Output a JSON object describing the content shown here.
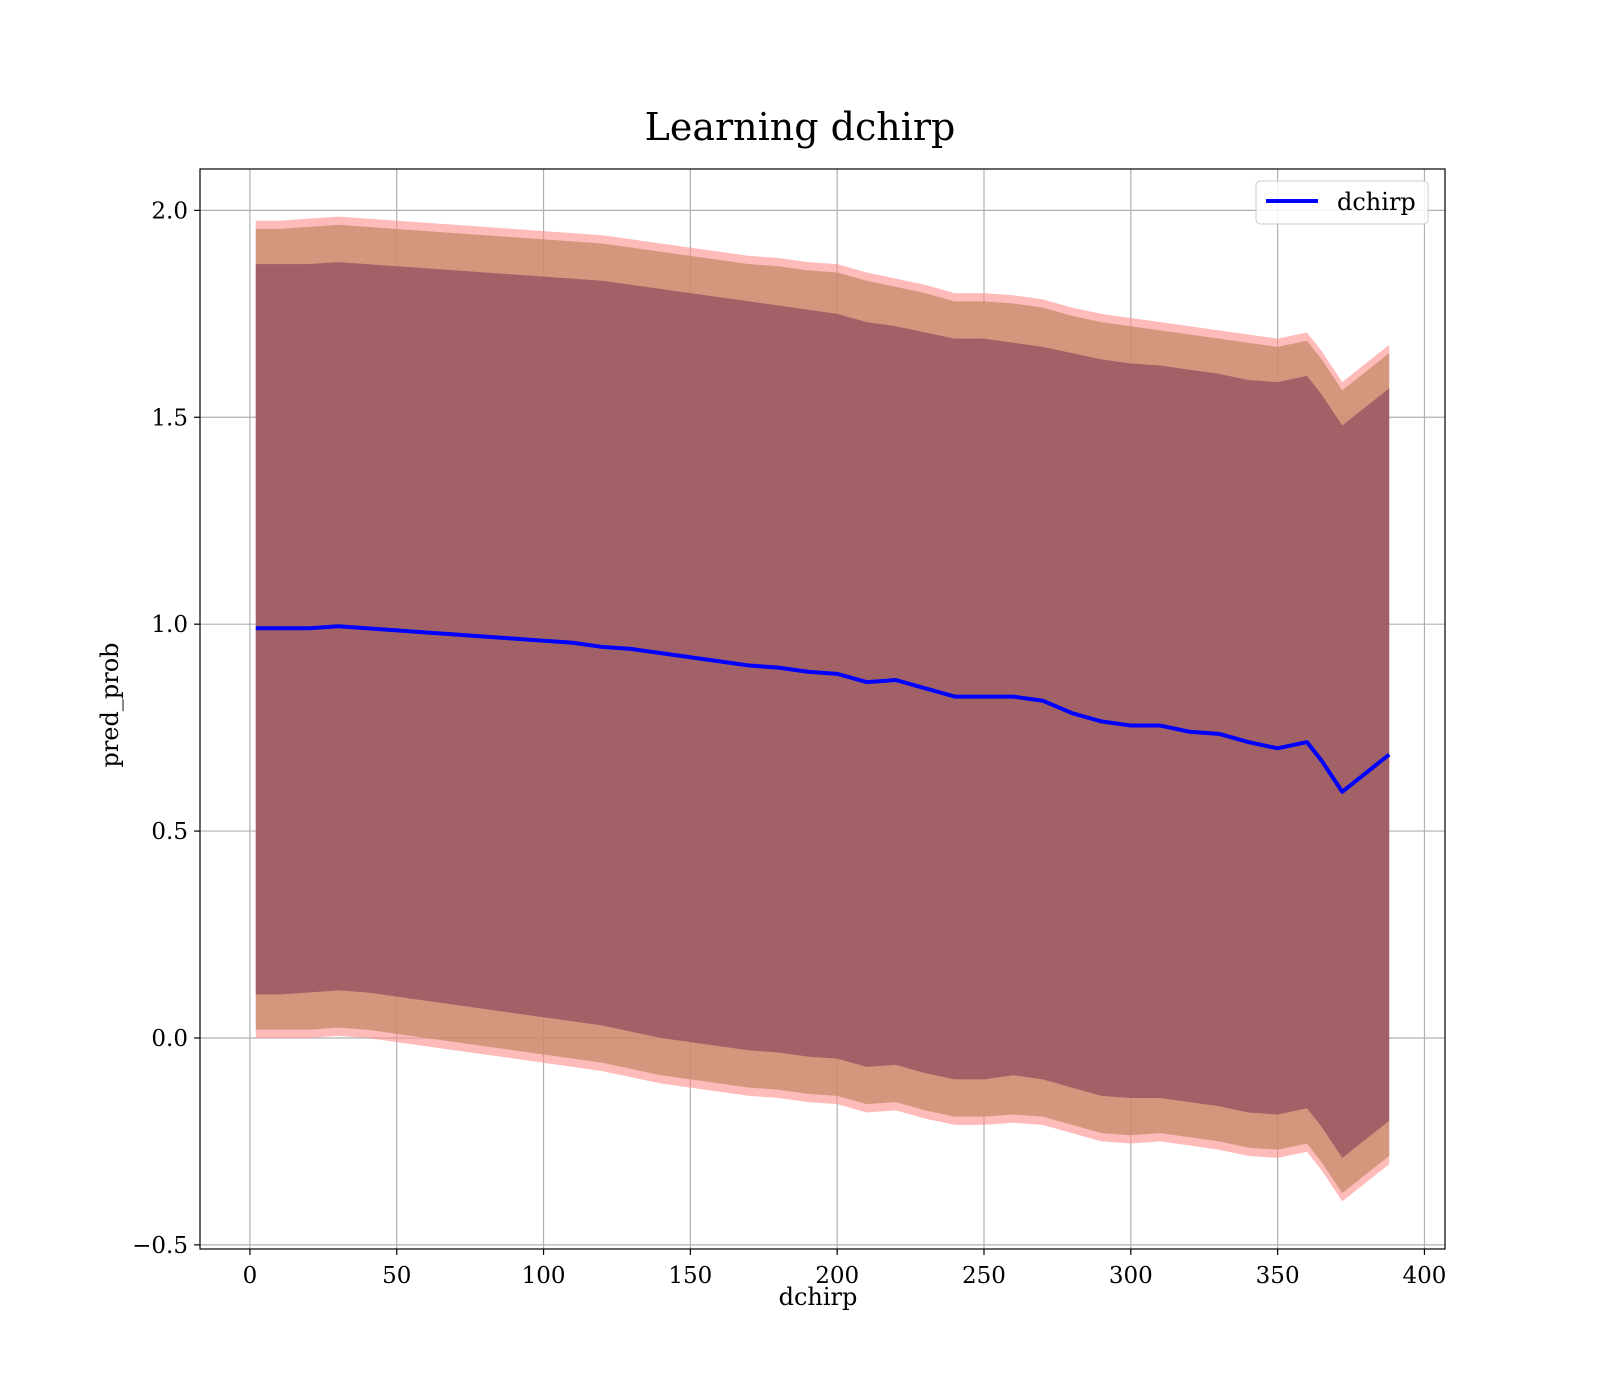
{
  "chart_data": {
    "type": "line",
    "title": "Learning dchirp",
    "xlabel": "dchirp",
    "ylabel": "pred_prob",
    "xlim": [
      -17,
      407
    ],
    "ylim": [
      -0.51,
      2.1
    ],
    "grid": true,
    "legend_placement": "top-right",
    "x_ticks": [
      0,
      50,
      100,
      150,
      200,
      250,
      300,
      350,
      400
    ],
    "x_tick_labels": [
      "0",
      "50",
      "100",
      "150",
      "200",
      "250",
      "300",
      "350",
      "400"
    ],
    "y_ticks": [
      -0.5,
      0.0,
      0.5,
      1.0,
      1.5,
      2.0
    ],
    "y_tick_labels": [
      "−0.5",
      "0.0",
      "0.5",
      "1.0",
      "1.5",
      "2.0"
    ],
    "series": [
      {
        "name": "dchirp",
        "color": "#0000ff",
        "x": [
          2,
          10,
          20,
          30,
          40,
          50,
          60,
          70,
          80,
          90,
          100,
          110,
          120,
          130,
          140,
          150,
          160,
          170,
          180,
          190,
          200,
          210,
          220,
          230,
          240,
          250,
          260,
          270,
          280,
          290,
          300,
          310,
          320,
          330,
          340,
          350,
          360,
          365,
          372,
          388
        ],
        "values": [
          0.99,
          0.99,
          0.99,
          0.995,
          0.99,
          0.985,
          0.98,
          0.975,
          0.97,
          0.965,
          0.96,
          0.955,
          0.945,
          0.94,
          0.93,
          0.92,
          0.91,
          0.9,
          0.895,
          0.885,
          0.88,
          0.86,
          0.865,
          0.845,
          0.825,
          0.825,
          0.825,
          0.815,
          0.785,
          0.765,
          0.755,
          0.755,
          0.74,
          0.735,
          0.715,
          0.7,
          0.715,
          0.67,
          0.595,
          0.685
        ],
        "bands": [
          {
            "sigma": 1,
            "color": "#8b4a5e",
            "opacity": 0.7
          },
          {
            "sigma": 2,
            "color": "#c88a6a",
            "opacity": 0.75
          },
          {
            "sigma": 3,
            "color": "#ff8c8c",
            "opacity": 0.6
          }
        ],
        "band_1_lower": [
          0.105,
          0.105,
          0.11,
          0.115,
          0.11,
          0.1,
          0.09,
          0.08,
          0.07,
          0.06,
          0.05,
          0.04,
          0.03,
          0.015,
          0.0,
          -0.01,
          -0.02,
          -0.03,
          -0.035,
          -0.045,
          -0.05,
          -0.07,
          -0.065,
          -0.085,
          -0.1,
          -0.1,
          -0.09,
          -0.1,
          -0.12,
          -0.14,
          -0.145,
          -0.145,
          -0.155,
          -0.165,
          -0.18,
          -0.185,
          -0.17,
          -0.215,
          -0.29,
          -0.2
        ],
        "band_1_upper": [
          1.87,
          1.87,
          1.87,
          1.875,
          1.87,
          1.865,
          1.86,
          1.855,
          1.85,
          1.845,
          1.84,
          1.835,
          1.83,
          1.82,
          1.81,
          1.8,
          1.79,
          1.78,
          1.77,
          1.76,
          1.75,
          1.73,
          1.72,
          1.705,
          1.69,
          1.69,
          1.68,
          1.67,
          1.655,
          1.64,
          1.63,
          1.625,
          1.615,
          1.605,
          1.59,
          1.585,
          1.6,
          1.555,
          1.48,
          1.57
        ],
        "band_2_lower": [
          0.02,
          0.02,
          0.02,
          0.025,
          0.02,
          0.01,
          0.0,
          -0.01,
          -0.02,
          -0.03,
          -0.04,
          -0.05,
          -0.06,
          -0.075,
          -0.09,
          -0.1,
          -0.11,
          -0.12,
          -0.125,
          -0.135,
          -0.14,
          -0.16,
          -0.155,
          -0.175,
          -0.19,
          -0.19,
          -0.185,
          -0.19,
          -0.21,
          -0.23,
          -0.235,
          -0.23,
          -0.24,
          -0.25,
          -0.265,
          -0.27,
          -0.255,
          -0.3,
          -0.375,
          -0.285
        ],
        "band_2_upper": [
          1.955,
          1.955,
          1.96,
          1.965,
          1.96,
          1.955,
          1.95,
          1.945,
          1.94,
          1.935,
          1.93,
          1.925,
          1.92,
          1.91,
          1.9,
          1.89,
          1.88,
          1.87,
          1.865,
          1.855,
          1.85,
          1.83,
          1.815,
          1.8,
          1.78,
          1.78,
          1.775,
          1.765,
          1.745,
          1.73,
          1.72,
          1.71,
          1.7,
          1.69,
          1.68,
          1.67,
          1.685,
          1.64,
          1.565,
          1.655
        ],
        "band_3_lower": [
          0.0,
          0.0,
          0.0,
          0.005,
          0.0,
          -0.01,
          -0.02,
          -0.03,
          -0.04,
          -0.05,
          -0.06,
          -0.07,
          -0.08,
          -0.095,
          -0.11,
          -0.12,
          -0.13,
          -0.14,
          -0.145,
          -0.155,
          -0.16,
          -0.18,
          -0.175,
          -0.195,
          -0.21,
          -0.21,
          -0.205,
          -0.21,
          -0.23,
          -0.25,
          -0.255,
          -0.25,
          -0.26,
          -0.27,
          -0.285,
          -0.29,
          -0.275,
          -0.32,
          -0.395,
          -0.305
        ],
        "band_3_upper": [
          1.975,
          1.975,
          1.98,
          1.985,
          1.98,
          1.975,
          1.97,
          1.965,
          1.96,
          1.955,
          1.95,
          1.945,
          1.94,
          1.93,
          1.92,
          1.91,
          1.9,
          1.89,
          1.885,
          1.875,
          1.87,
          1.85,
          1.835,
          1.82,
          1.8,
          1.8,
          1.795,
          1.785,
          1.765,
          1.75,
          1.74,
          1.73,
          1.72,
          1.71,
          1.7,
          1.69,
          1.705,
          1.66,
          1.585,
          1.675
        ]
      }
    ]
  }
}
